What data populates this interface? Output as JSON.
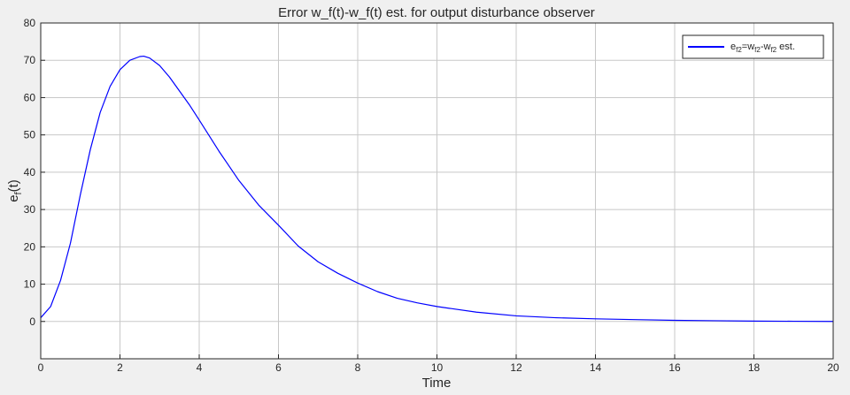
{
  "chart_data": {
    "type": "line",
    "title": "Error w_f(t)-w_f(t) est. for output disturbance observer",
    "xlabel": "Time",
    "ylabel": {
      "main": "e",
      "sub": "f",
      "tail": "(t)"
    },
    "xlim": [
      0,
      20
    ],
    "ylim": [
      -10,
      80
    ],
    "xticks": [
      0,
      2,
      4,
      6,
      8,
      10,
      12,
      14,
      16,
      18,
      20
    ],
    "yticks": [
      0,
      10,
      20,
      30,
      40,
      50,
      60,
      70,
      80
    ],
    "grid": true,
    "legend_position": "top-right",
    "colors": {
      "series": "#0000ff",
      "grid": "#c8c8c8",
      "axes_bg": "#ffffff",
      "figure_bg": "#f0f0f0"
    },
    "series": [
      {
        "legend": {
          "e": "e",
          "e_sub": "f2",
          "eq_w": "=w",
          "w1_sub": "f2",
          "dash_w": "-w",
          "w2_sub": "f2",
          "tail": " est."
        },
        "x": [
          0,
          0.25,
          0.5,
          0.75,
          1,
          1.25,
          1.5,
          1.75,
          2,
          2.25,
          2.5,
          2.6,
          2.75,
          3,
          3.25,
          3.5,
          3.75,
          4,
          4.5,
          5,
          5.5,
          6,
          6.5,
          7,
          7.5,
          8,
          8.5,
          9,
          9.5,
          10,
          11,
          12,
          13,
          14,
          15,
          16,
          17,
          18,
          19,
          20
        ],
        "y": [
          1,
          4,
          11,
          21,
          34,
          46,
          56,
          63,
          67.5,
          70,
          71,
          71.1,
          70.6,
          68.6,
          65.5,
          61.8,
          58.1,
          54,
          45.6,
          37.8,
          31.2,
          25.8,
          20.2,
          16,
          12.9,
          10.3,
          8,
          6.2,
          5,
          4,
          2.5,
          1.5,
          1,
          0.7,
          0.5,
          0.3,
          0.2,
          0.1,
          0.05,
          0
        ]
      }
    ]
  }
}
